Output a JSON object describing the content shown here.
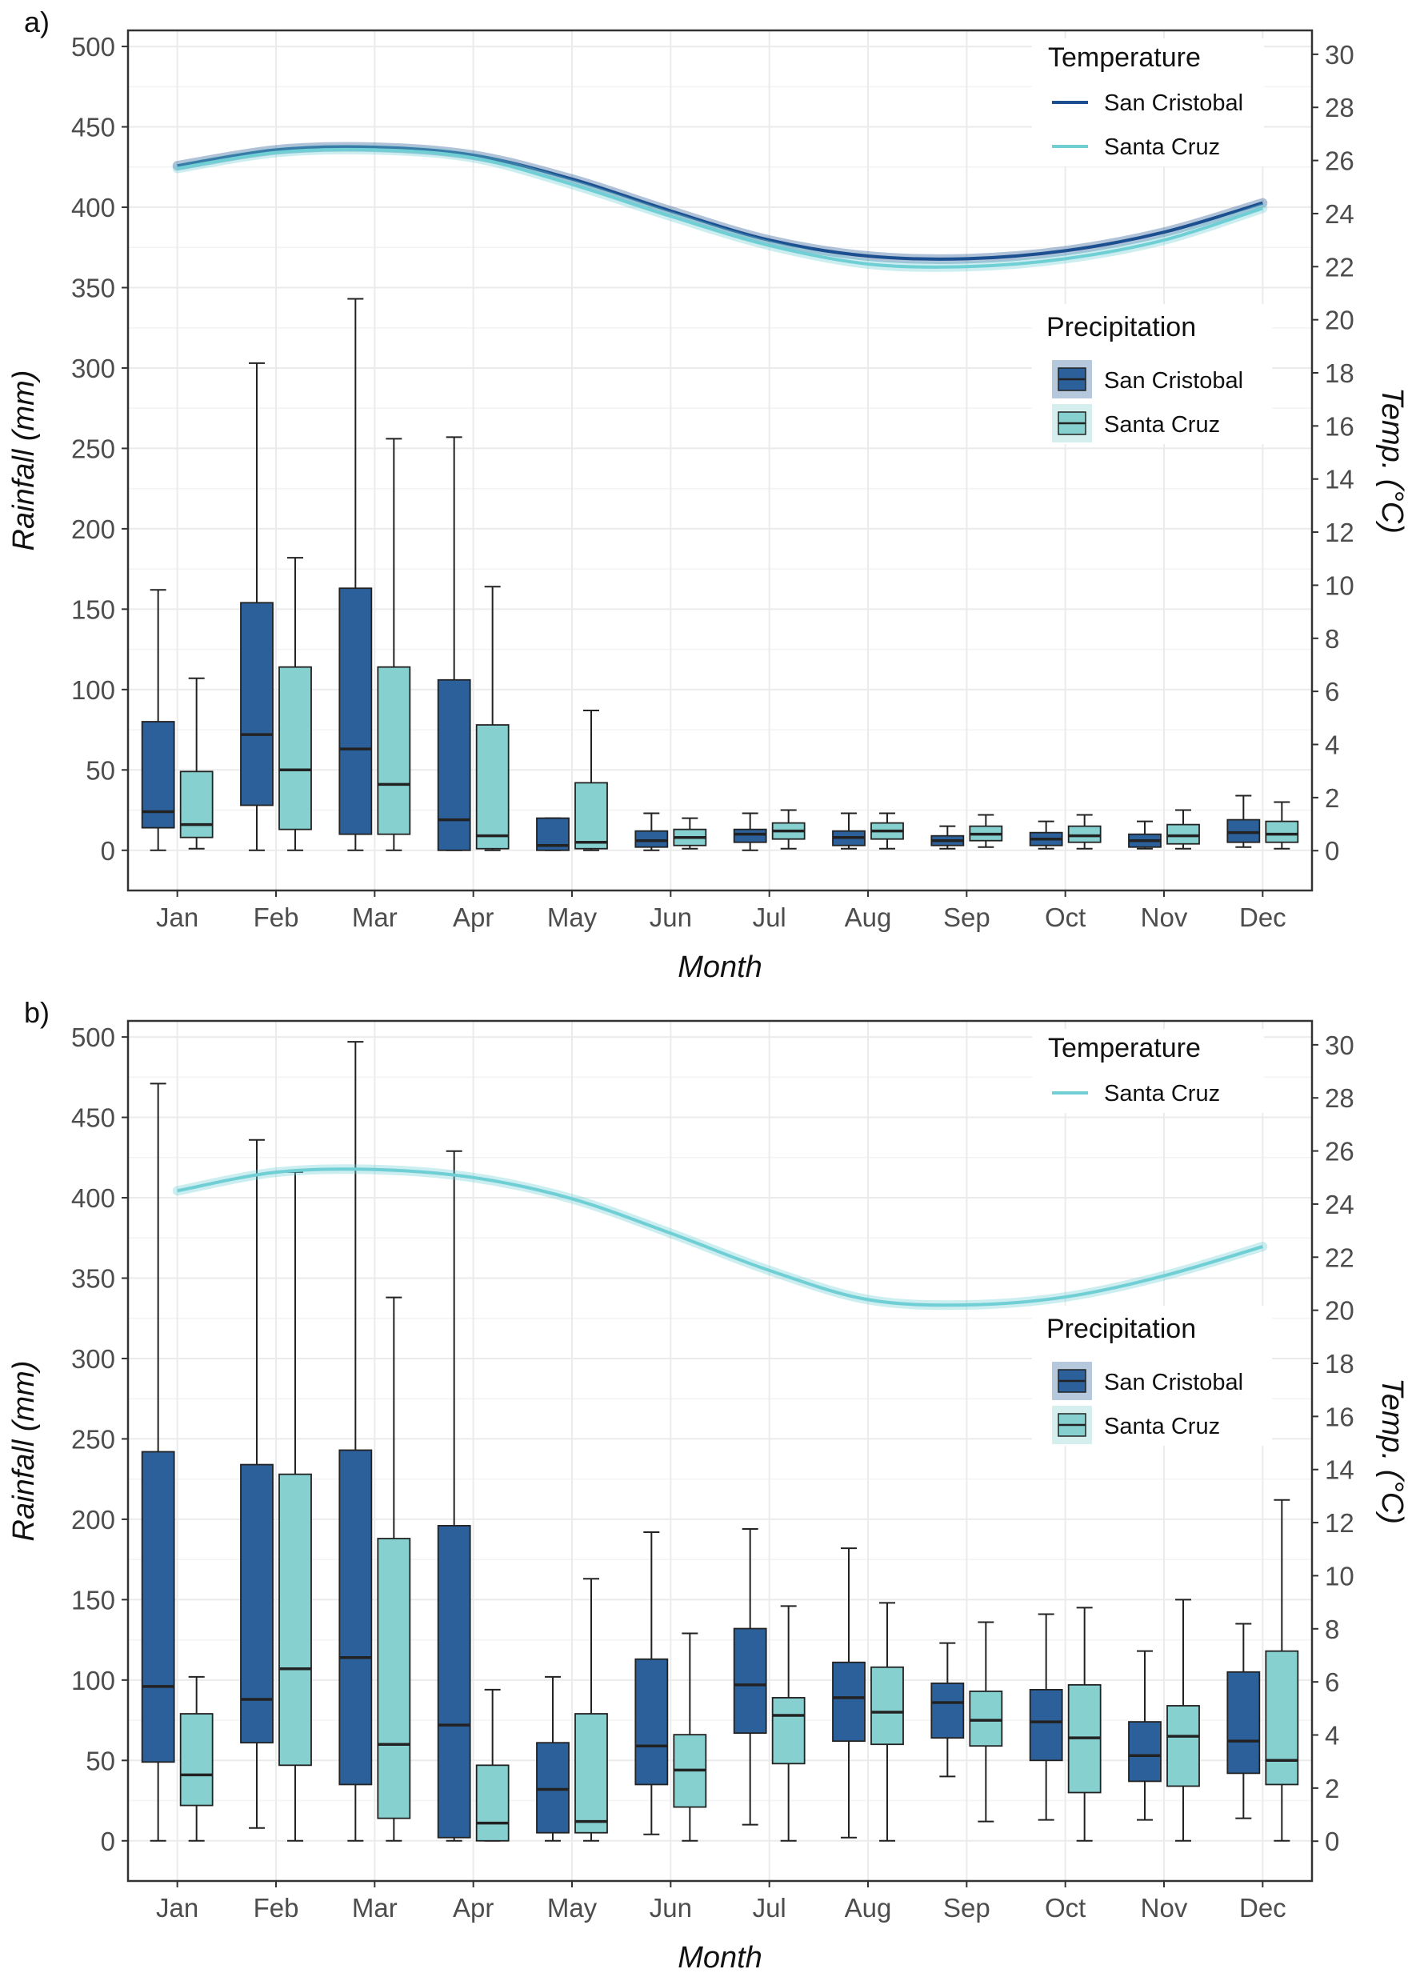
{
  "chart_data": [
    {
      "panel_label": "a)",
      "type": "box+line",
      "categories": [
        "Jan",
        "Feb",
        "Mar",
        "Apr",
        "May",
        "Jun",
        "Jul",
        "Aug",
        "Sep",
        "Oct",
        "Nov",
        "Dec"
      ],
      "xlabel": "Month",
      "ylabel": "Rainfall (mm)",
      "y2label": "Temp. (°C)",
      "ylim": [
        -25,
        510
      ],
      "yticks": [
        0,
        50,
        100,
        150,
        200,
        250,
        300,
        350,
        400,
        450,
        500
      ],
      "y2lim": [
        -1.5,
        30.9
      ],
      "y2ticks": [
        0,
        2,
        4,
        6,
        8,
        10,
        12,
        14,
        16,
        18,
        20,
        22,
        24,
        26,
        28,
        30
      ],
      "grid": true,
      "temperature_legend": {
        "title": "Temperature",
        "position": "top-right"
      },
      "precipitation_legend": {
        "title": "Precipitation",
        "position": "right"
      },
      "colors": {
        "san_cristobal": "#2c609a",
        "santa_cruz": "#86d0d0",
        "temp_san_cristobal": "#1b4f8f",
        "temp_santa_cruz": "#6fcfd4"
      },
      "temperature_series": [
        {
          "name": "San Cristobal",
          "values": [
            25.8,
            26.4,
            26.5,
            26.2,
            25.3,
            24.1,
            23.0,
            22.4,
            22.3,
            22.6,
            23.3,
            24.4
          ]
        },
        {
          "name": "Santa Cruz",
          "values": [
            25.7,
            26.3,
            26.4,
            26.1,
            25.1,
            23.9,
            22.8,
            22.1,
            22.0,
            22.3,
            23.0,
            24.2
          ]
        }
      ],
      "precipitation_series": [
        {
          "name": "San Cristobal",
          "boxes": [
            {
              "min": 0,
              "q1": 14,
              "median": 24,
              "q3": 80,
              "max": 162
            },
            {
              "min": 0,
              "q1": 28,
              "median": 72,
              "q3": 154,
              "max": 303
            },
            {
              "min": 0,
              "q1": 10,
              "median": 63,
              "q3": 163,
              "max": 343
            },
            {
              "min": 0,
              "q1": 0,
              "median": 19,
              "q3": 106,
              "max": 257
            },
            {
              "min": 0,
              "q1": 0,
              "median": 3,
              "q3": 20,
              "max": 20
            },
            {
              "min": 0,
              "q1": 2,
              "median": 6,
              "q3": 12,
              "max": 23
            },
            {
              "min": 0,
              "q1": 5,
              "median": 10,
              "q3": 13,
              "max": 23
            },
            {
              "min": 1,
              "q1": 3,
              "median": 8,
              "q3": 12,
              "max": 23
            },
            {
              "min": 1,
              "q1": 3,
              "median": 6,
              "q3": 9,
              "max": 15
            },
            {
              "min": 1,
              "q1": 3,
              "median": 7,
              "q3": 11,
              "max": 18
            },
            {
              "min": 1,
              "q1": 2,
              "median": 6,
              "q3": 10,
              "max": 18
            },
            {
              "min": 2,
              "q1": 5,
              "median": 11,
              "q3": 19,
              "max": 34
            }
          ]
        },
        {
          "name": "Santa Cruz",
          "boxes": [
            {
              "min": 1,
              "q1": 8,
              "median": 16,
              "q3": 49,
              "max": 107
            },
            {
              "min": 0,
              "q1": 13,
              "median": 50,
              "q3": 114,
              "max": 182
            },
            {
              "min": 0,
              "q1": 10,
              "median": 41,
              "q3": 114,
              "max": 256
            },
            {
              "min": 0,
              "q1": 1,
              "median": 9,
              "q3": 78,
              "max": 164
            },
            {
              "min": 0,
              "q1": 1,
              "median": 5,
              "q3": 42,
              "max": 87
            },
            {
              "min": 1,
              "q1": 3,
              "median": 8,
              "q3": 13,
              "max": 20
            },
            {
              "min": 1,
              "q1": 7,
              "median": 12,
              "q3": 17,
              "max": 25
            },
            {
              "min": 1,
              "q1": 7,
              "median": 12,
              "q3": 17,
              "max": 23
            },
            {
              "min": 2,
              "q1": 6,
              "median": 10,
              "q3": 15,
              "max": 22
            },
            {
              "min": 1,
              "q1": 5,
              "median": 9,
              "q3": 15,
              "max": 22
            },
            {
              "min": 1,
              "q1": 4,
              "median": 9,
              "q3": 16,
              "max": 25
            },
            {
              "min": 1,
              "q1": 5,
              "median": 10,
              "q3": 18,
              "max": 30
            }
          ]
        }
      ]
    },
    {
      "panel_label": "b)",
      "type": "box+line",
      "categories": [
        "Jan",
        "Feb",
        "Mar",
        "Apr",
        "May",
        "Jun",
        "Jul",
        "Aug",
        "Sep",
        "Oct",
        "Nov",
        "Dec"
      ],
      "xlabel": "Month",
      "ylabel": "Rainfall (mm)",
      "y2label": "Temp. (°C)",
      "ylim": [
        -25,
        510
      ],
      "yticks": [
        0,
        50,
        100,
        150,
        200,
        250,
        300,
        350,
        400,
        450,
        500
      ],
      "y2lim": [
        -1.5,
        30.9
      ],
      "y2ticks": [
        0,
        2,
        4,
        6,
        8,
        10,
        12,
        14,
        16,
        18,
        20,
        22,
        24,
        26,
        28,
        30
      ],
      "grid": true,
      "temperature_legend": {
        "title": "Temperature",
        "position": "top-right"
      },
      "precipitation_legend": {
        "title": "Precipitation",
        "position": "right"
      },
      "colors": {
        "san_cristobal": "#2c609a",
        "santa_cruz": "#86d0d0",
        "temp_santa_cruz": "#6fcfd4"
      },
      "temperature_series": [
        {
          "name": "Santa Cruz",
          "values": [
            24.5,
            25.2,
            25.3,
            25.0,
            24.2,
            22.9,
            21.5,
            20.4,
            20.2,
            20.5,
            21.3,
            22.4
          ]
        }
      ],
      "precipitation_series": [
        {
          "name": "San Cristobal",
          "boxes": [
            {
              "min": 0,
              "q1": 49,
              "median": 96,
              "q3": 242,
              "max": 471
            },
            {
              "min": 8,
              "q1": 61,
              "median": 88,
              "q3": 234,
              "max": 436
            },
            {
              "min": 0,
              "q1": 35,
              "median": 114,
              "q3": 243,
              "max": 497
            },
            {
              "min": 0,
              "q1": 2,
              "median": 72,
              "q3": 196,
              "max": 429
            },
            {
              "min": 0,
              "q1": 5,
              "median": 32,
              "q3": 61,
              "max": 102
            },
            {
              "min": 4,
              "q1": 35,
              "median": 59,
              "q3": 113,
              "max": 192
            },
            {
              "min": 10,
              "q1": 67,
              "median": 97,
              "q3": 132,
              "max": 194
            },
            {
              "min": 2,
              "q1": 62,
              "median": 89,
              "q3": 111,
              "max": 182
            },
            {
              "min": 40,
              "q1": 64,
              "median": 86,
              "q3": 98,
              "max": 123
            },
            {
              "min": 13,
              "q1": 50,
              "median": 74,
              "q3": 94,
              "max": 141
            },
            {
              "min": 13,
              "q1": 37,
              "median": 53,
              "q3": 74,
              "max": 118
            },
            {
              "min": 14,
              "q1": 42,
              "median": 62,
              "q3": 105,
              "max": 135
            }
          ]
        },
        {
          "name": "Santa Cruz",
          "boxes": [
            {
              "min": 0,
              "q1": 22,
              "median": 41,
              "q3": 79,
              "max": 102
            },
            {
              "min": 0,
              "q1": 47,
              "median": 107,
              "q3": 228,
              "max": 416
            },
            {
              "min": 0,
              "q1": 14,
              "median": 60,
              "q3": 188,
              "max": 338
            },
            {
              "min": 0,
              "q1": 0,
              "median": 11,
              "q3": 47,
              "max": 94
            },
            {
              "min": 0,
              "q1": 5,
              "median": 12,
              "q3": 79,
              "max": 163
            },
            {
              "min": 0,
              "q1": 21,
              "median": 44,
              "q3": 66,
              "max": 129
            },
            {
              "min": 0,
              "q1": 48,
              "median": 78,
              "q3": 89,
              "max": 146
            },
            {
              "min": 0,
              "q1": 60,
              "median": 80,
              "q3": 108,
              "max": 148
            },
            {
              "min": 12,
              "q1": 59,
              "median": 75,
              "q3": 93,
              "max": 136
            },
            {
              "min": 0,
              "q1": 30,
              "median": 64,
              "q3": 97,
              "max": 145
            },
            {
              "min": 0,
              "q1": 34,
              "median": 65,
              "q3": 84,
              "max": 150
            },
            {
              "min": 0,
              "q1": 35,
              "median": 50,
              "q3": 118,
              "max": 212
            }
          ]
        }
      ]
    }
  ]
}
